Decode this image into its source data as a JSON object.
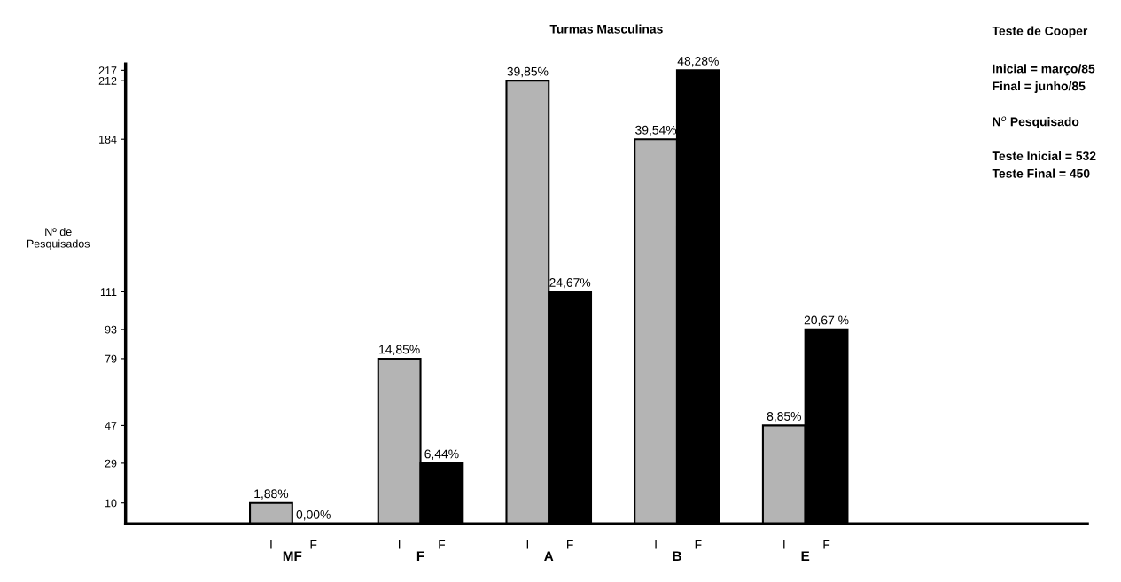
{
  "chart_data": {
    "type": "bar",
    "title": "Turmas Masculinas",
    "ylabel": "Nº de\nPesquisados",
    "categories": [
      "MF",
      "F",
      "A",
      "B",
      "E"
    ],
    "series": [
      {
        "name": "I",
        "color": "#b4b4b4",
        "values": [
          10,
          79,
          212,
          184,
          47
        ]
      },
      {
        "name": "F",
        "color": "#000000",
        "values": [
          0,
          29,
          111,
          217,
          93
        ]
      }
    ],
    "ylim": [
      0,
      220
    ],
    "yticks": [
      10,
      29,
      47,
      79,
      93,
      111,
      184,
      212,
      217
    ],
    "annotations": [
      "Teste de Cooper",
      "Inicial = março/85",
      "Final = junho/85",
      "N$^{o}$ Pesquisado",
      "Teste Inicial = 532",
      "Teste Final = 450",
      {
        "text": "1,88%",
        "x": "MF",
        "y": 10
      },
      {
        "text": "0,00%",
        "x": "MF",
        "y": 0
      },
      {
        "text": "14,85%",
        "x": "F",
        "y": 79
      },
      {
        "text": "6,44%",
        "x": "F",
        "y": 29
      },
      {
        "text": "39,85%",
        "x": "A",
        "y": 212
      },
      {
        "text": "24,67%",
        "x": "A",
        "y": 111
      },
      {
        "text": "39,54%",
        "x": "B",
        "y": 184
      },
      {
        "text": "48,28%",
        "x": "B",
        "y": 217
      },
      {
        "text": "8,85%",
        "x": "E",
        "y": 47
      },
      {
        "text": "20,67 %",
        "x": "E",
        "y": 93
      }
    ],
    "grid": false,
    "legend": false
  }
}
